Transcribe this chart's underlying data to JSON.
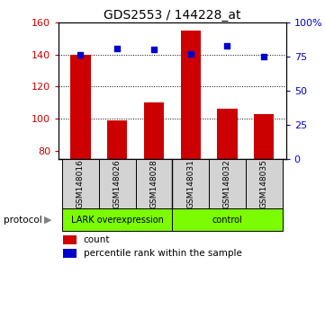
{
  "title": "GDS2553 / 144228_at",
  "samples": [
    "GSM148016",
    "GSM148026",
    "GSM148028",
    "GSM148031",
    "GSM148032",
    "GSM148035"
  ],
  "counts": [
    140,
    99,
    110,
    155,
    106,
    103
  ],
  "percentile_ranks": [
    76,
    81,
    80,
    77,
    83,
    75
  ],
  "ylim_left": [
    75,
    160
  ],
  "ylim_right": [
    0,
    100
  ],
  "yticks_left": [
    80,
    100,
    120,
    140,
    160
  ],
  "yticks_right": [
    0,
    25,
    50,
    75,
    100
  ],
  "bar_color": "#cc0000",
  "dot_color": "#0000cc",
  "bar_bottom": 75,
  "group_divider": 2.5,
  "group1_label": "LARK overexpression",
  "group2_label": "control",
  "group_color": "#7CFC00",
  "sample_bg_color": "#d3d3d3",
  "protocol_label": "protocol",
  "legend_count_label": "count",
  "legend_pct_label": "percentile rank within the sample",
  "ylabel_left_color": "#cc0000",
  "ylabel_right_color": "#0000cc",
  "gridline_values": [
    100,
    120,
    140
  ]
}
